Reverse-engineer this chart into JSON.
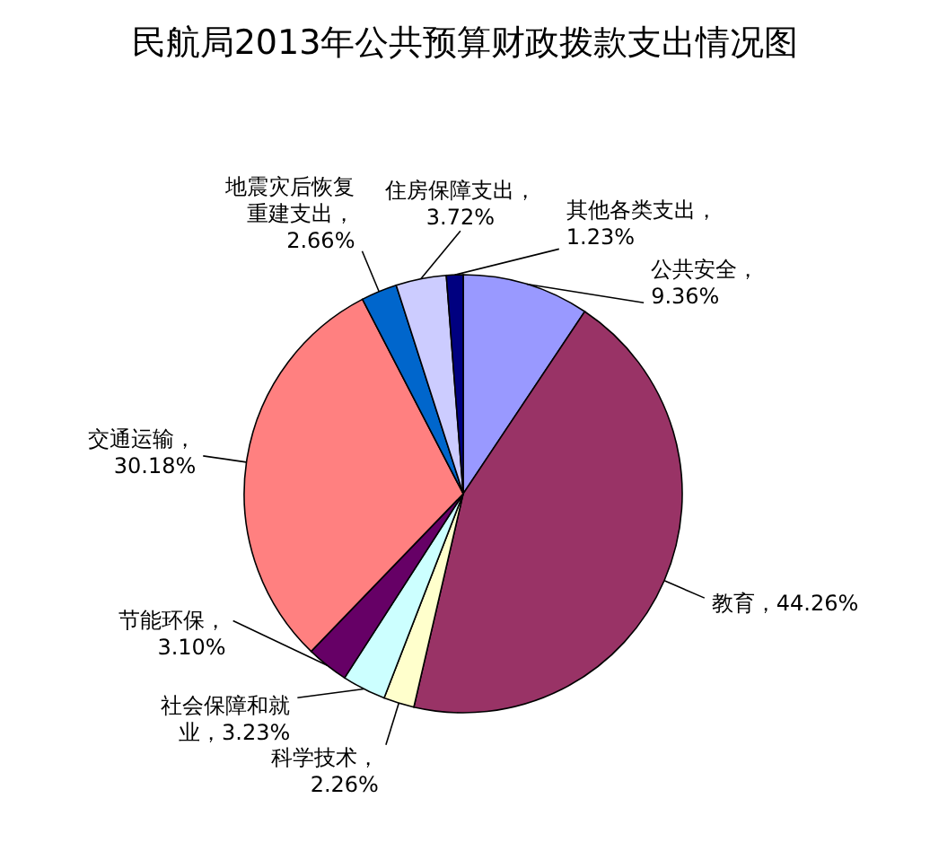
{
  "chart_data": {
    "type": "pie",
    "title": "民航局2013年公共预算财政拨款支出情况图",
    "categories": [
      "公共安全",
      "教育",
      "科学技术",
      "社会保障和就业",
      "节能环保",
      "交通运输",
      "地震灾后恢复重建支出",
      "住房保障支出",
      "其他各类支出"
    ],
    "values": [
      9.36,
      44.26,
      2.26,
      3.23,
      3.1,
      30.18,
      2.66,
      3.72,
      1.23
    ],
    "colors": [
      "#9999ff",
      "#993366",
      "#ffffcc",
      "#ccffff",
      "#660066",
      "#ff8080",
      "#0066cc",
      "#ccccff",
      "#000080"
    ],
    "value_labels": [
      "，9.36%",
      "，44.26%",
      "，2.26%",
      "，3.23%",
      "，3.10%",
      "，30.18%",
      "，2.66%",
      "，3.72%",
      "，1.23%"
    ],
    "legend": false
  }
}
